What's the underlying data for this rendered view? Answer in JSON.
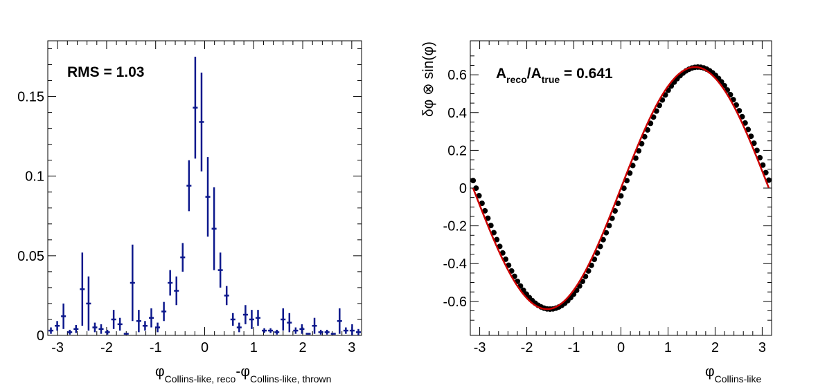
{
  "chart_data": [
    {
      "type": "scatter",
      "subtype": "histogram-with-error-bars",
      "title": "",
      "annotation": "RMS = 1.03",
      "xlabel": {
        "phi1": "φ",
        "sub1": "Collins-like, reco",
        "minus": "-",
        "phi2": "φ",
        "sub2": "Collins-like, thrown"
      },
      "ylabel": "",
      "xlim": [
        -3.2,
        3.2
      ],
      "ylim": [
        0,
        0.185
      ],
      "xticks": [
        -3,
        -2,
        -1,
        0,
        1,
        2,
        3
      ],
      "xtick_labels": [
        "-3",
        "-2",
        "-1",
        "0",
        "1",
        "2",
        "3"
      ],
      "yticks": [
        0,
        0.05,
        0.1,
        0.15
      ],
      "ytick_labels": [
        "0",
        "0.05",
        "0.1",
        "0.15"
      ],
      "bin_width": 0.128,
      "color": "#0c188c",
      "series": [
        {
          "x": [
            -3.136,
            -3.008,
            -2.88,
            -2.752,
            -2.624,
            -2.496,
            -2.368,
            -2.24,
            -2.112,
            -1.984,
            -1.856,
            -1.728,
            -1.6,
            -1.472,
            -1.344,
            -1.216,
            -1.088,
            -0.96,
            -0.832,
            -0.704,
            -0.576,
            -0.448,
            -0.32,
            -0.192,
            -0.064,
            0.064,
            0.192,
            0.32,
            0.448,
            0.576,
            0.704,
            0.832,
            0.96,
            1.088,
            1.216,
            1.344,
            1.472,
            1.6,
            1.728,
            1.856,
            1.984,
            2.112,
            2.24,
            2.368,
            2.496,
            2.624,
            2.752,
            2.88,
            3.008,
            3.136
          ],
          "y": [
            0.003,
            0.006,
            0.012,
            0.002,
            0.004,
            0.029,
            0.02,
            0.005,
            0.004,
            0.002,
            0.01,
            0.007,
            0.001,
            0.033,
            0.009,
            0.006,
            0.011,
            0.005,
            0.015,
            0.033,
            0.028,
            0.049,
            0.094,
            0.143,
            0.134,
            0.087,
            0.067,
            0.041,
            0.025,
            0.01,
            0.005,
            0.013,
            0.01,
            0.011,
            0.003,
            0.003,
            0.002,
            0.01,
            0.008,
            0.003,
            0.004,
            0.001,
            0.006,
            0.002,
            0.002,
            0.001,
            0.009,
            0.003,
            0.003,
            0.002
          ],
          "err": [
            0.002,
            0.003,
            0.008,
            0.0015,
            0.0025,
            0.023,
            0.017,
            0.003,
            0.003,
            0.0015,
            0.006,
            0.004,
            0.0005,
            0.024,
            0.007,
            0.003,
            0.006,
            0.003,
            0.006,
            0.008,
            0.009,
            0.009,
            0.016,
            0.032,
            0.031,
            0.025,
            0.026,
            0.011,
            0.006,
            0.004,
            0.003,
            0.006,
            0.006,
            0.005,
            0.0015,
            0.0015,
            0.0015,
            0.007,
            0.006,
            0.002,
            0.003,
            0.0005,
            0.005,
            0.0015,
            0.0015,
            0.0005,
            0.008,
            0.002,
            0.004,
            0.002
          ]
        }
      ]
    },
    {
      "type": "line",
      "title": "",
      "annotation": {
        "a1": "A",
        "sub1": "reco",
        "slash": "/",
        "a2": "A",
        "sub2": "true",
        "value": " = 0.641"
      },
      "xlabel": {
        "phi": "φ",
        "sub": "Collins-like"
      },
      "ylabel": "δφ ⊗ sin(φ)",
      "xlim": [
        -3.2,
        3.2
      ],
      "ylim": [
        -0.78,
        0.78
      ],
      "xticks": [
        -3,
        -2,
        -1,
        0,
        1,
        2,
        3
      ],
      "xtick_labels": [
        "-3",
        "-2",
        "-1",
        "0",
        "1",
        "2",
        "3"
      ],
      "yticks": [
        -0.6,
        -0.4,
        -0.2,
        0,
        0.2,
        0.4,
        0.6
      ],
      "ytick_labels": [
        "-0.6",
        "-0.4",
        "-0.2",
        "0",
        "0.2",
        "0.4",
        "0.6"
      ],
      "series": [
        {
          "role": "points",
          "color": "#000000",
          "function": "0.641*sin(x-0.064)",
          "x_range": [
            -3.14,
            3.14
          ],
          "n_points": 100
        },
        {
          "role": "fit",
          "color": "#cc0000",
          "function": "0.641*sin(x)",
          "x_range": [
            -3.14,
            3.14
          ]
        }
      ]
    }
  ]
}
